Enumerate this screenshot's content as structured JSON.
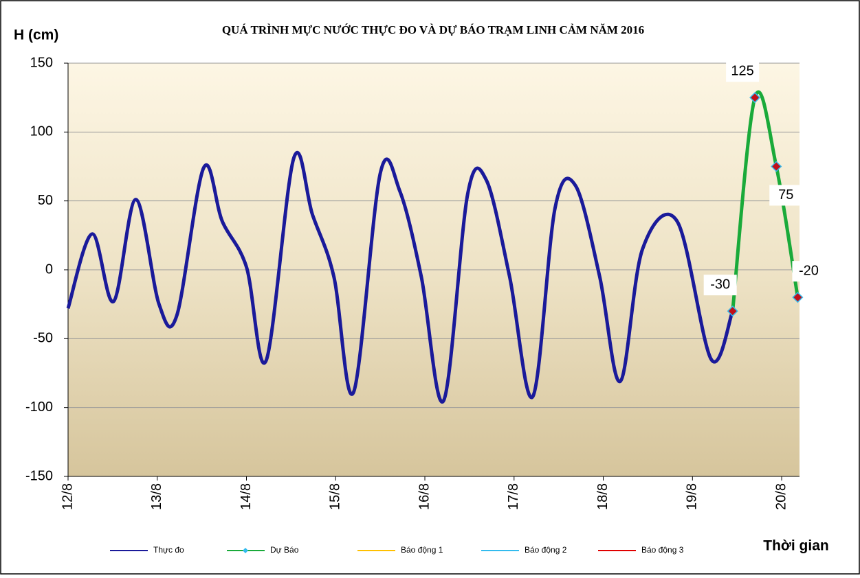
{
  "chart_data": {
    "type": "line",
    "title": "QUÁ TRÌNH MỰC NƯỚC THỰC ĐO VÀ DỰ BÁO TRẠM LINH CẢM NĂM 2016",
    "y_label": "H (cm)",
    "x_label": "Thời gian",
    "xlim": [
      0,
      8.2
    ],
    "xticks": [
      {
        "value": 0,
        "label": "12/8"
      },
      {
        "value": 1,
        "label": "13/8"
      },
      {
        "value": 2,
        "label": "14/8"
      },
      {
        "value": 3,
        "label": "15/8"
      },
      {
        "value": 4,
        "label": "16/8"
      },
      {
        "value": 5,
        "label": "17/8"
      },
      {
        "value": 6,
        "label": "18/8"
      },
      {
        "value": 7,
        "label": "19/8"
      },
      {
        "value": 8,
        "label": "20/8"
      }
    ],
    "ylim": [
      -150,
      150
    ],
    "yticks": [
      -150,
      -100,
      -50,
      0,
      50,
      100,
      150
    ],
    "grid": true,
    "series": [
      {
        "name": "Thực đo",
        "color": "#1a1a9a",
        "x": [
          0,
          0.27,
          0.51,
          0.76,
          1.02,
          1.22,
          1.52,
          1.73,
          2.0,
          2.22,
          2.53,
          2.74,
          2.98,
          3.2,
          3.5,
          3.72,
          3.96,
          4.21,
          4.48,
          4.69,
          4.95,
          5.21,
          5.46,
          5.69,
          5.96,
          6.19,
          6.44,
          6.83,
          7.21,
          7.45
        ],
        "values": [
          -28,
          26,
          -23,
          51,
          -25,
          -33,
          74,
          35,
          2,
          -66,
          81,
          40,
          -5,
          -89,
          70,
          57,
          -5,
          -95,
          55,
          65,
          -5,
          -92,
          45,
          61,
          -5,
          -81,
          15,
          35,
          -65,
          -30
        ]
      },
      {
        "name": "Dự Báo",
        "color": "#1aaa3a",
        "marker": "diamond",
        "marker_color": "#c0101a",
        "marker_edge": "#33bbee",
        "data_labels": true,
        "x": [
          7.45,
          7.7,
          7.94,
          8.18
        ],
        "values": [
          -30,
          125,
          75,
          -20
        ]
      },
      {
        "name": "Báo động 1",
        "color": "#ffc000",
        "x": [],
        "values": []
      },
      {
        "name": "Báo động 2",
        "color": "#33bbee",
        "x": [],
        "values": []
      },
      {
        "name": "Báo động 3",
        "color": "#e00000",
        "x": [],
        "values": []
      }
    ]
  }
}
